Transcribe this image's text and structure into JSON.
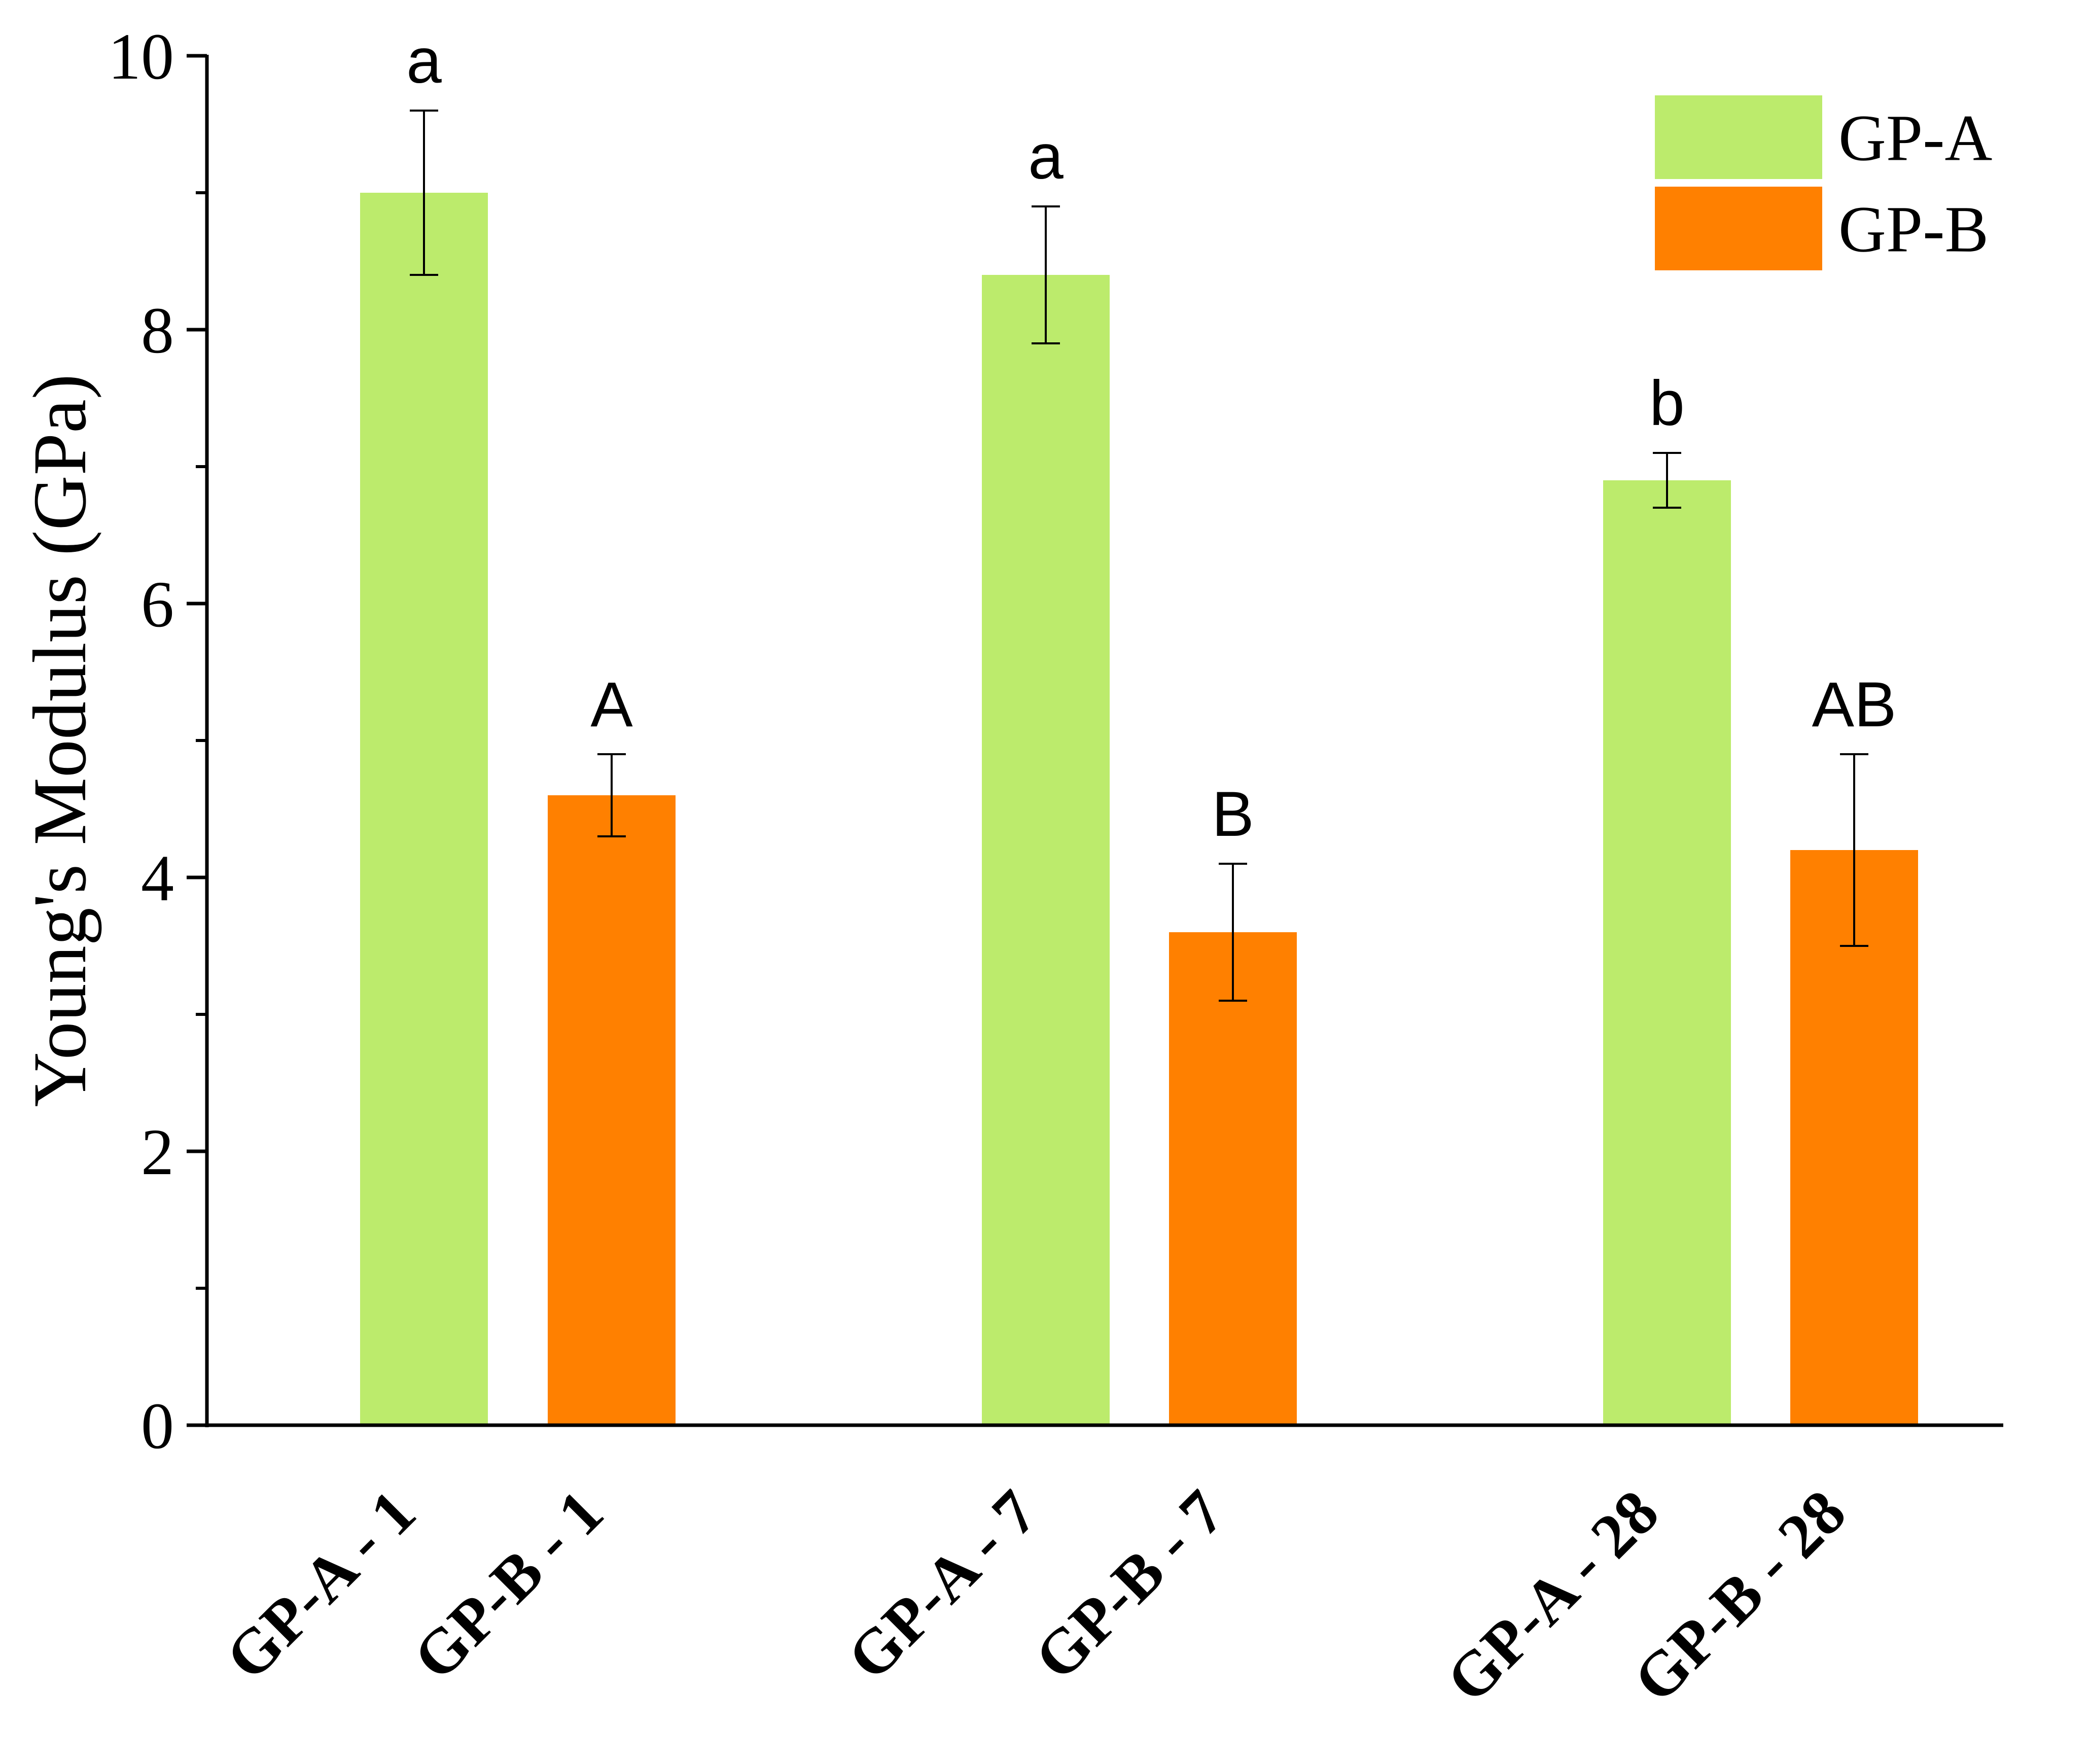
{
  "chart_data": {
    "type": "bar",
    "title": "",
    "xlabel": "",
    "ylabel": "Young's Modulus (GPa)",
    "ylim": [
      0,
      10
    ],
    "yticks": [
      "0",
      "2",
      "4",
      "6",
      "8",
      "10"
    ],
    "categories": [
      "GP-A - 1",
      "GP-B - 1",
      "GP-A - 7",
      "GP-B - 7",
      "GP-A - 28",
      "GP-B - 28"
    ],
    "series_of_category": [
      "GP-A",
      "GP-B",
      "GP-A",
      "GP-B",
      "GP-A",
      "GP-B"
    ],
    "values": [
      9.0,
      4.6,
      8.4,
      3.6,
      6.9,
      4.2
    ],
    "errors": [
      0.6,
      0.3,
      0.5,
      0.5,
      0.2,
      0.7
    ],
    "significance": [
      "a",
      "A",
      "a",
      "B",
      "b",
      "AB"
    ],
    "legend": [
      {
        "name": "GP-A",
        "color": "#bceb6c"
      },
      {
        "name": "GP-B",
        "color": "#ff8000"
      }
    ],
    "legend_position": "top-right",
    "grid": false
  }
}
